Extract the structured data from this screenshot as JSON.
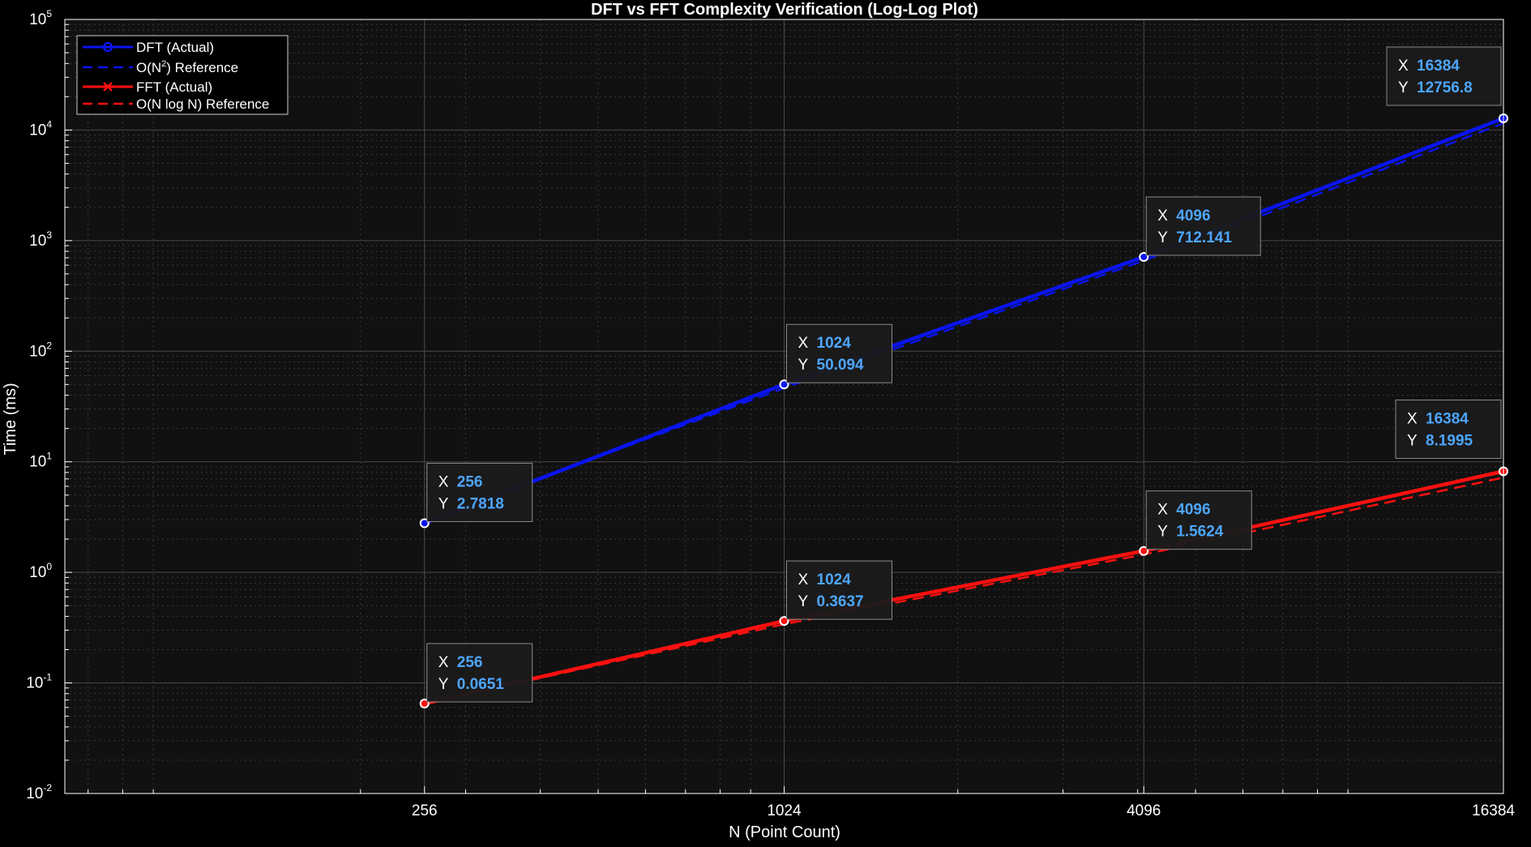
{
  "chart_data": {
    "type": "line",
    "title": "DFT vs FFT Complexity Verification (Log-Log Plot)",
    "xlabel": "N (Point Count)",
    "ylabel": "Time (ms)",
    "xscale": "log",
    "yscale": "log",
    "xlim": [
      64,
      16384
    ],
    "ylim": [
      0.01,
      100000
    ],
    "grid": true,
    "minor_grid": true,
    "x_ticks": [
      256,
      1024,
      4096,
      16384
    ],
    "x_tick_labels": [
      "256",
      "1024",
      "4096",
      "16384"
    ],
    "y_ticks": [
      0.01,
      0.1,
      1,
      10,
      100,
      1000,
      10000,
      100000
    ],
    "y_tick_labels": [
      {
        "base": "10",
        "exp": "-2"
      },
      {
        "base": "10",
        "exp": "-1"
      },
      {
        "base": "10",
        "exp": "0"
      },
      {
        "base": "10",
        "exp": "1"
      },
      {
        "base": "10",
        "exp": "2"
      },
      {
        "base": "10",
        "exp": "3"
      },
      {
        "base": "10",
        "exp": "4"
      },
      {
        "base": "10",
        "exp": "5"
      }
    ],
    "legend_position": "top-left",
    "series": [
      {
        "name": "DFT (Actual)",
        "color": "#0a14f0",
        "style": "solid",
        "marker": "circle",
        "x": [
          256,
          1024,
          4096,
          16384
        ],
        "y": [
          2.7818,
          50.094,
          712.141,
          12756.8
        ]
      },
      {
        "name": "O(N²) Reference",
        "legend_parts": {
          "before": "O(N",
          "sup": "2",
          "after": ")  Reference"
        },
        "color": "#0a14f0",
        "style": "dashed",
        "marker": "none",
        "x": [
          256,
          1024,
          4096,
          16384
        ],
        "y": [
          2.9,
          46.5,
          660,
          11500
        ]
      },
      {
        "name": "FFT (Actual)",
        "color": "#ff1010",
        "style": "solid",
        "marker": "x",
        "x": [
          256,
          1024,
          4096,
          16384
        ],
        "y": [
          0.0651,
          0.3637,
          1.5624,
          8.1995
        ]
      },
      {
        "name": "O(N log N) Reference",
        "color": "#ff1010",
        "style": "dashed",
        "marker": "none",
        "x": [
          256,
          1024,
          4096,
          16384
        ],
        "y": [
          0.0651,
          0.34,
          1.45,
          7.2
        ]
      }
    ],
    "datatips": [
      {
        "x_label": "X",
        "y_label": "Y",
        "x": "256",
        "y": "2.7818",
        "series": "DFT (Actual)"
      },
      {
        "x_label": "X",
        "y_label": "Y",
        "x": "1024",
        "y": "50.094",
        "series": "DFT (Actual)"
      },
      {
        "x_label": "X",
        "y_label": "Y",
        "x": "4096",
        "y": "712.141",
        "series": "DFT (Actual)"
      },
      {
        "x_label": "X",
        "y_label": "Y",
        "x": "16384",
        "y": "12756.8",
        "series": "DFT (Actual)"
      },
      {
        "x_label": "X",
        "y_label": "Y",
        "x": "256",
        "y": "0.0651",
        "series": "FFT (Actual)"
      },
      {
        "x_label": "X",
        "y_label": "Y",
        "x": "1024",
        "y": "0.3637",
        "series": "FFT (Actual)"
      },
      {
        "x_label": "X",
        "y_label": "Y",
        "x": "4096",
        "y": "1.5624",
        "series": "FFT (Actual)"
      },
      {
        "x_label": "X",
        "y_label": "Y",
        "x": "16384",
        "y": "8.1995",
        "series": "FFT (Actual)"
      }
    ],
    "colors": {
      "figure_bg": "#000000",
      "axes_bg": "#111111",
      "text": "#ffffff",
      "grid_major": "#4a4a4a",
      "grid_minor": "#3a3a3a",
      "datatip_value": "#4da6ff",
      "datatip_bg": "#1b1b1b",
      "datatip_border": "#8a8a8a"
    }
  }
}
